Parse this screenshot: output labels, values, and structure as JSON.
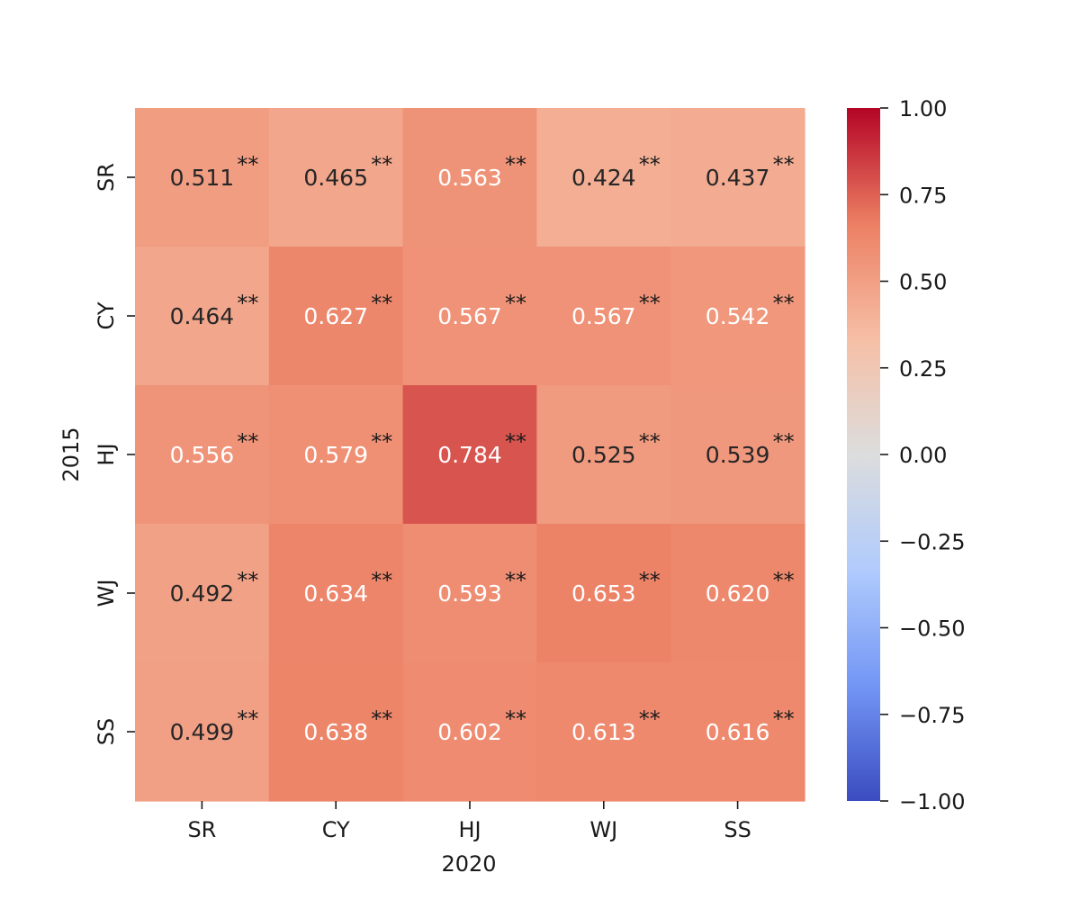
{
  "chart_data": {
    "type": "heatmap",
    "title": "",
    "xlabel": "2020",
    "ylabel": "2015",
    "x_categories": [
      "SR",
      "CY",
      "HJ",
      "WJ",
      "SS"
    ],
    "y_categories": [
      "SR",
      "CY",
      "HJ",
      "WJ",
      "SS"
    ],
    "values": [
      [
        0.511,
        0.465,
        0.563,
        0.424,
        0.437
      ],
      [
        0.464,
        0.627,
        0.567,
        0.567,
        0.542
      ],
      [
        0.556,
        0.579,
        0.784,
        0.525,
        0.539
      ],
      [
        0.492,
        0.634,
        0.593,
        0.653,
        0.62
      ],
      [
        0.499,
        0.638,
        0.602,
        0.613,
        0.616
      ]
    ],
    "cell_labels": [
      [
        "0.511",
        "0.465",
        "0.563",
        "0.424",
        "0.437"
      ],
      [
        "0.464",
        "0.627",
        "0.567",
        "0.567",
        "0.542"
      ],
      [
        "0.556",
        "0.579",
        "0.784",
        "0.525",
        "0.539"
      ],
      [
        "0.492",
        "0.634",
        "0.593",
        "0.653",
        "0.620"
      ],
      [
        "0.499",
        "0.638",
        "0.602",
        "0.613",
        "0.616"
      ]
    ],
    "significance": "**",
    "colormap": "coolwarm",
    "colormap_stops": [
      "#3b4cc0",
      "#7396f5",
      "#b0cbfc",
      "#dcdddd",
      "#f6bfa6",
      "#ec7f63",
      "#b40426"
    ],
    "vmin": -1.0,
    "vmax": 1.0,
    "colorbar_ticks": [
      1.0,
      0.75,
      0.5,
      0.25,
      0.0,
      -0.25,
      -0.5,
      -0.75,
      -1.0
    ],
    "colorbar_tick_labels": [
      "1.00",
      "0.75",
      "0.50",
      "0.25",
      "0.00",
      "−0.25",
      "−0.50",
      "−0.75",
      "−1.00"
    ],
    "colorbar_placement": "right"
  }
}
